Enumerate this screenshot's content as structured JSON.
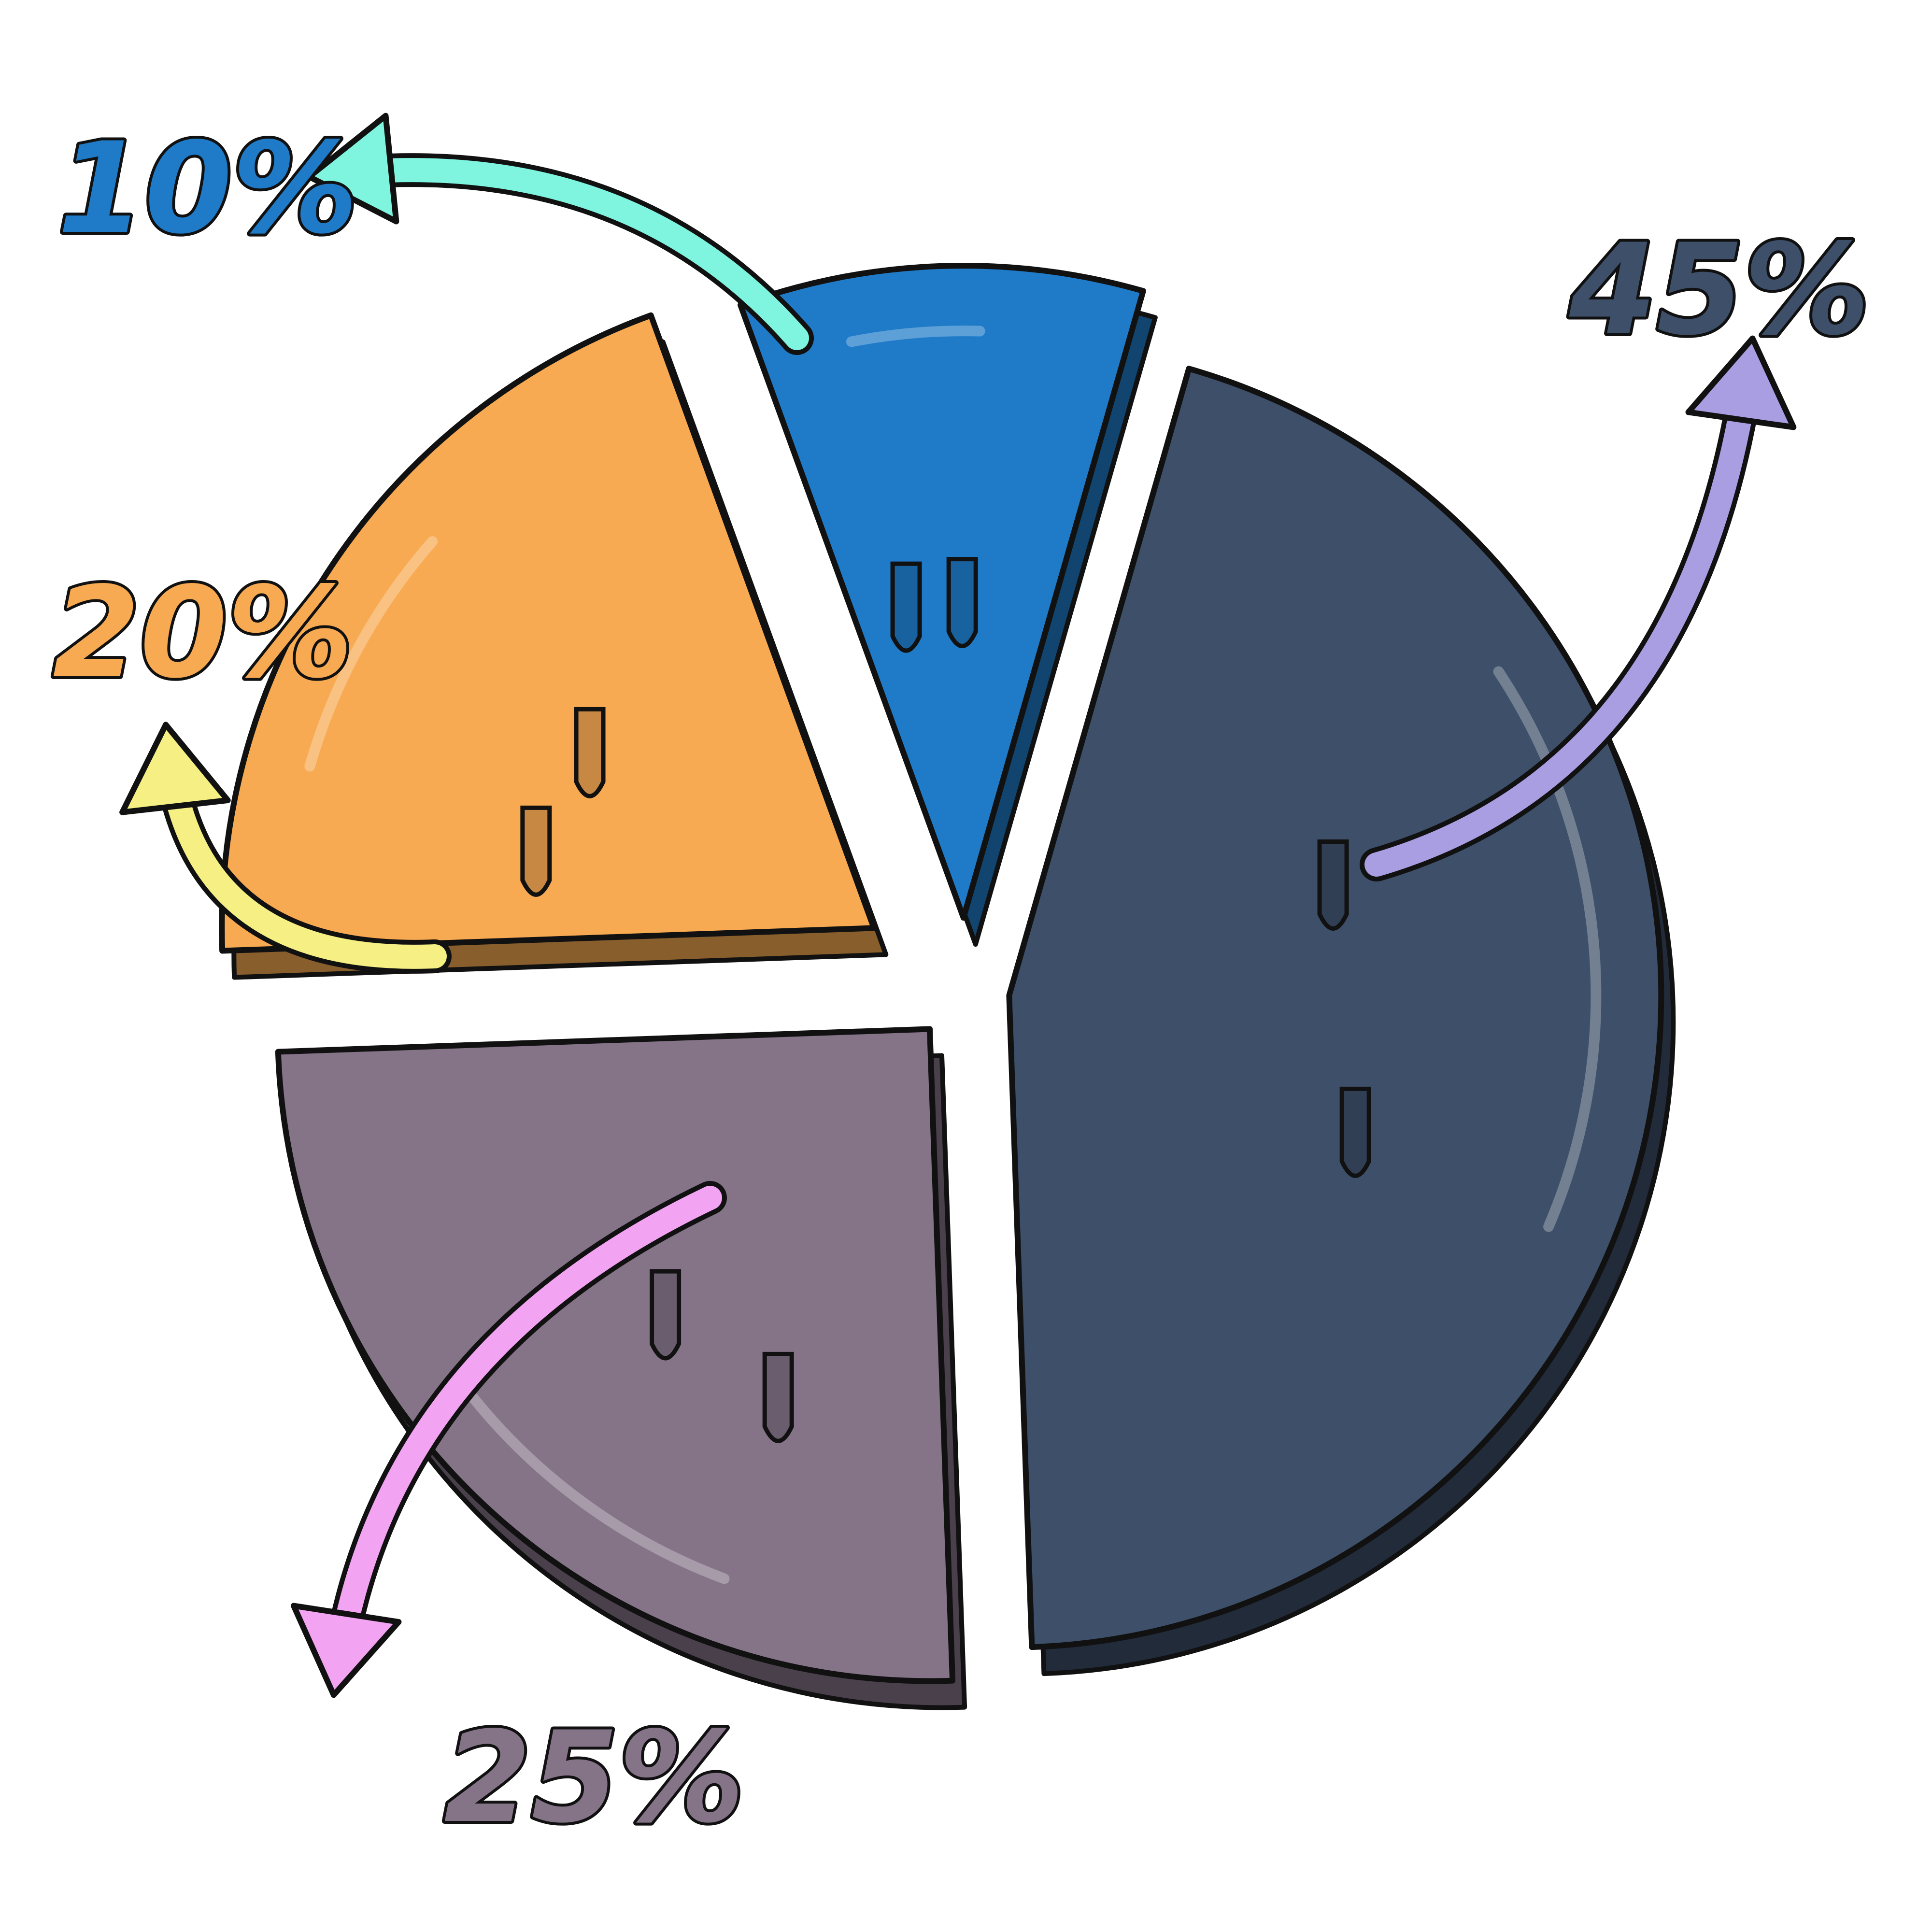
{
  "chart_data": {
    "type": "pie",
    "title": "",
    "slices": [
      {
        "label": "10%",
        "value": 10,
        "color": "#1f7bc8",
        "arrow_color": "#7ff5e0",
        "icon": "curved-arrow-icon"
      },
      {
        "label": "45%",
        "value": 45,
        "color": "#3d4f69",
        "arrow_color": "#a99ee2",
        "icon": "curved-arrow-icon"
      },
      {
        "label": "25%",
        "value": 25,
        "color": "#857488",
        "arrow_color": "#f2a4f3",
        "icon": "curved-arrow-icon"
      },
      {
        "label": "20%",
        "value": 20,
        "color": "#f7aa52",
        "arrow_color": "#f5ef84",
        "icon": "curved-arrow-icon"
      }
    ],
    "legend": "none",
    "style": "cartoon exploded pie with dripping paint"
  }
}
